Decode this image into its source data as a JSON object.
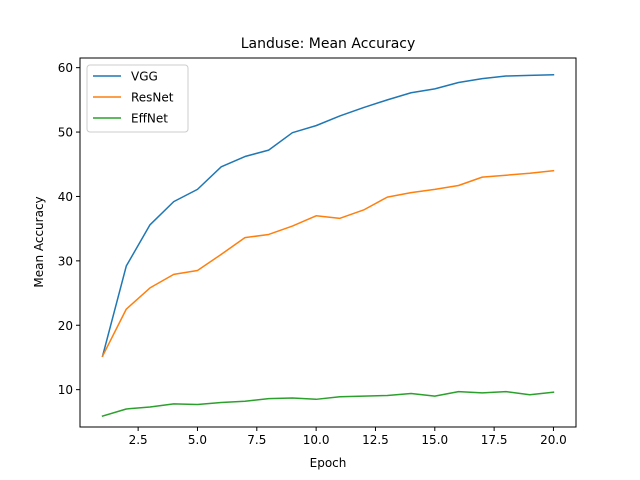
{
  "chart_data": {
    "type": "line",
    "title": "Landuse: Mean Accuracy",
    "xlabel": "Epoch",
    "ylabel": "Mean Accuracy",
    "xlim": [
      0.05,
      20.95
    ],
    "ylim": [
      4.2,
      61.5
    ],
    "xticks": [
      2.5,
      5.0,
      7.5,
      10.0,
      12.5,
      15.0,
      17.5,
      20.0
    ],
    "xtick_labels": [
      "2.5",
      "5.0",
      "7.5",
      "10.0",
      "12.5",
      "15.0",
      "17.5",
      "20.0"
    ],
    "yticks": [
      10,
      20,
      30,
      40,
      50,
      60
    ],
    "ytick_labels": [
      "10",
      "20",
      "30",
      "40",
      "50",
      "60"
    ],
    "grid": false,
    "legend_position": "top-left",
    "x": [
      1,
      2,
      3,
      4,
      5,
      6,
      7,
      8,
      9,
      10,
      11,
      12,
      13,
      14,
      15,
      16,
      17,
      18,
      19,
      20
    ],
    "series": [
      {
        "name": "VGG",
        "color": "#1f77b4",
        "values": [
          15.2,
          29.2,
          35.6,
          39.2,
          41.1,
          44.6,
          46.2,
          47.2,
          49.9,
          51.0,
          52.5,
          53.8,
          55.0,
          56.1,
          56.7,
          57.7,
          58.3,
          58.7,
          58.8,
          58.9
        ]
      },
      {
        "name": "ResNet",
        "color": "#ff7f0e",
        "values": [
          15.2,
          22.5,
          25.8,
          27.9,
          28.5,
          31.0,
          33.6,
          34.1,
          35.4,
          37.0,
          36.6,
          37.9,
          39.9,
          40.6,
          41.1,
          41.7,
          43.0,
          43.3,
          43.6,
          44.0
        ]
      },
      {
        "name": "EffNet",
        "color": "#2ca02c",
        "values": [
          5.9,
          7.0,
          7.3,
          7.8,
          7.7,
          8.0,
          8.2,
          8.6,
          8.7,
          8.5,
          8.9,
          9.0,
          9.1,
          9.4,
          9.0,
          9.7,
          9.5,
          9.7,
          9.2,
          9.6
        ]
      }
    ]
  }
}
